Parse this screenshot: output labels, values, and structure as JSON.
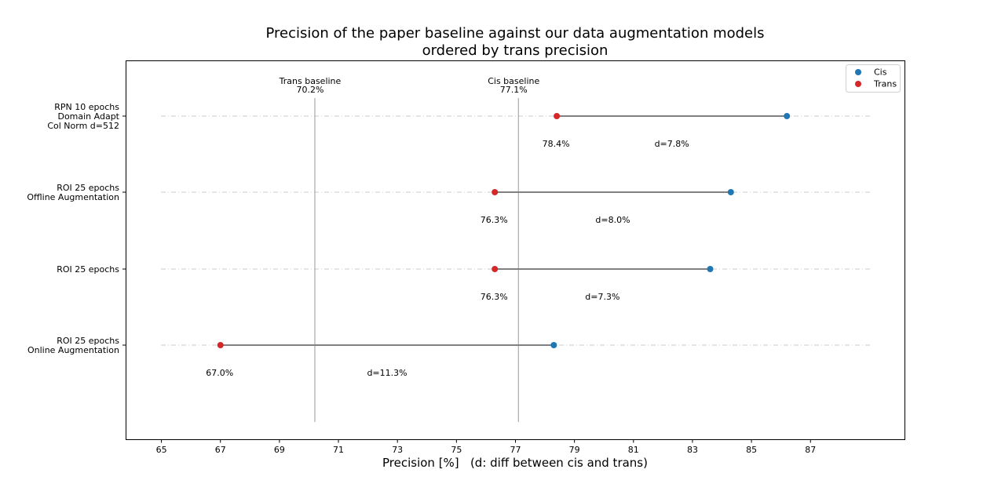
{
  "chart_data": {
    "type": "dumbbell",
    "title": [
      "Precision of the paper baseline against our data augmentation models",
      "ordered by trans precision"
    ],
    "xlabel": "Precision [%]   (d: diff between cis and trans)",
    "xlim": [
      63.8,
      90.2
    ],
    "xticks": [
      "65",
      "67",
      "69",
      "71",
      "73",
      "75",
      "77",
      "79",
      "81",
      "83",
      "85",
      "87"
    ],
    "grid": "horizontal dash-dot per row",
    "legend": {
      "placement": "top-right",
      "entries": [
        {
          "label": "Cis",
          "color": "#1f77b4"
        },
        {
          "label": "Trans",
          "color": "#d62728"
        }
      ]
    },
    "baselines": [
      {
        "name": "Trans baseline",
        "value": 70.2,
        "label": "70.2%"
      },
      {
        "name": "Cis baseline",
        "value": 77.1,
        "label": "77.1%"
      }
    ],
    "rows": [
      {
        "label": [
          "RPN 10 epochs",
          "Domain Adapt",
          "Col Norm d=512"
        ],
        "trans": 78.4,
        "cis": 86.2,
        "trans_label": "78.4%",
        "diff_label": "d=7.8%"
      },
      {
        "label": [
          "ROI 25 epochs",
          "Offline Augmentation"
        ],
        "trans": 76.3,
        "cis": 84.3,
        "trans_label": "76.3%",
        "diff_label": "d=8.0%"
      },
      {
        "label": [
          "ROI 25 epochs"
        ],
        "trans": 76.3,
        "cis": 83.6,
        "trans_label": "76.3%",
        "diff_label": "d=7.3%"
      },
      {
        "label": [
          "ROI 25 epochs",
          "Online Augmentation"
        ],
        "trans": 67.0,
        "cis": 78.3,
        "trans_label": "67.0%",
        "diff_label": "d=11.3%"
      }
    ],
    "colors": {
      "cis": "#1f77b4",
      "trans": "#d62728",
      "connector": "#808080",
      "baseline": "#999999",
      "grid": "#bbbbbb"
    }
  }
}
